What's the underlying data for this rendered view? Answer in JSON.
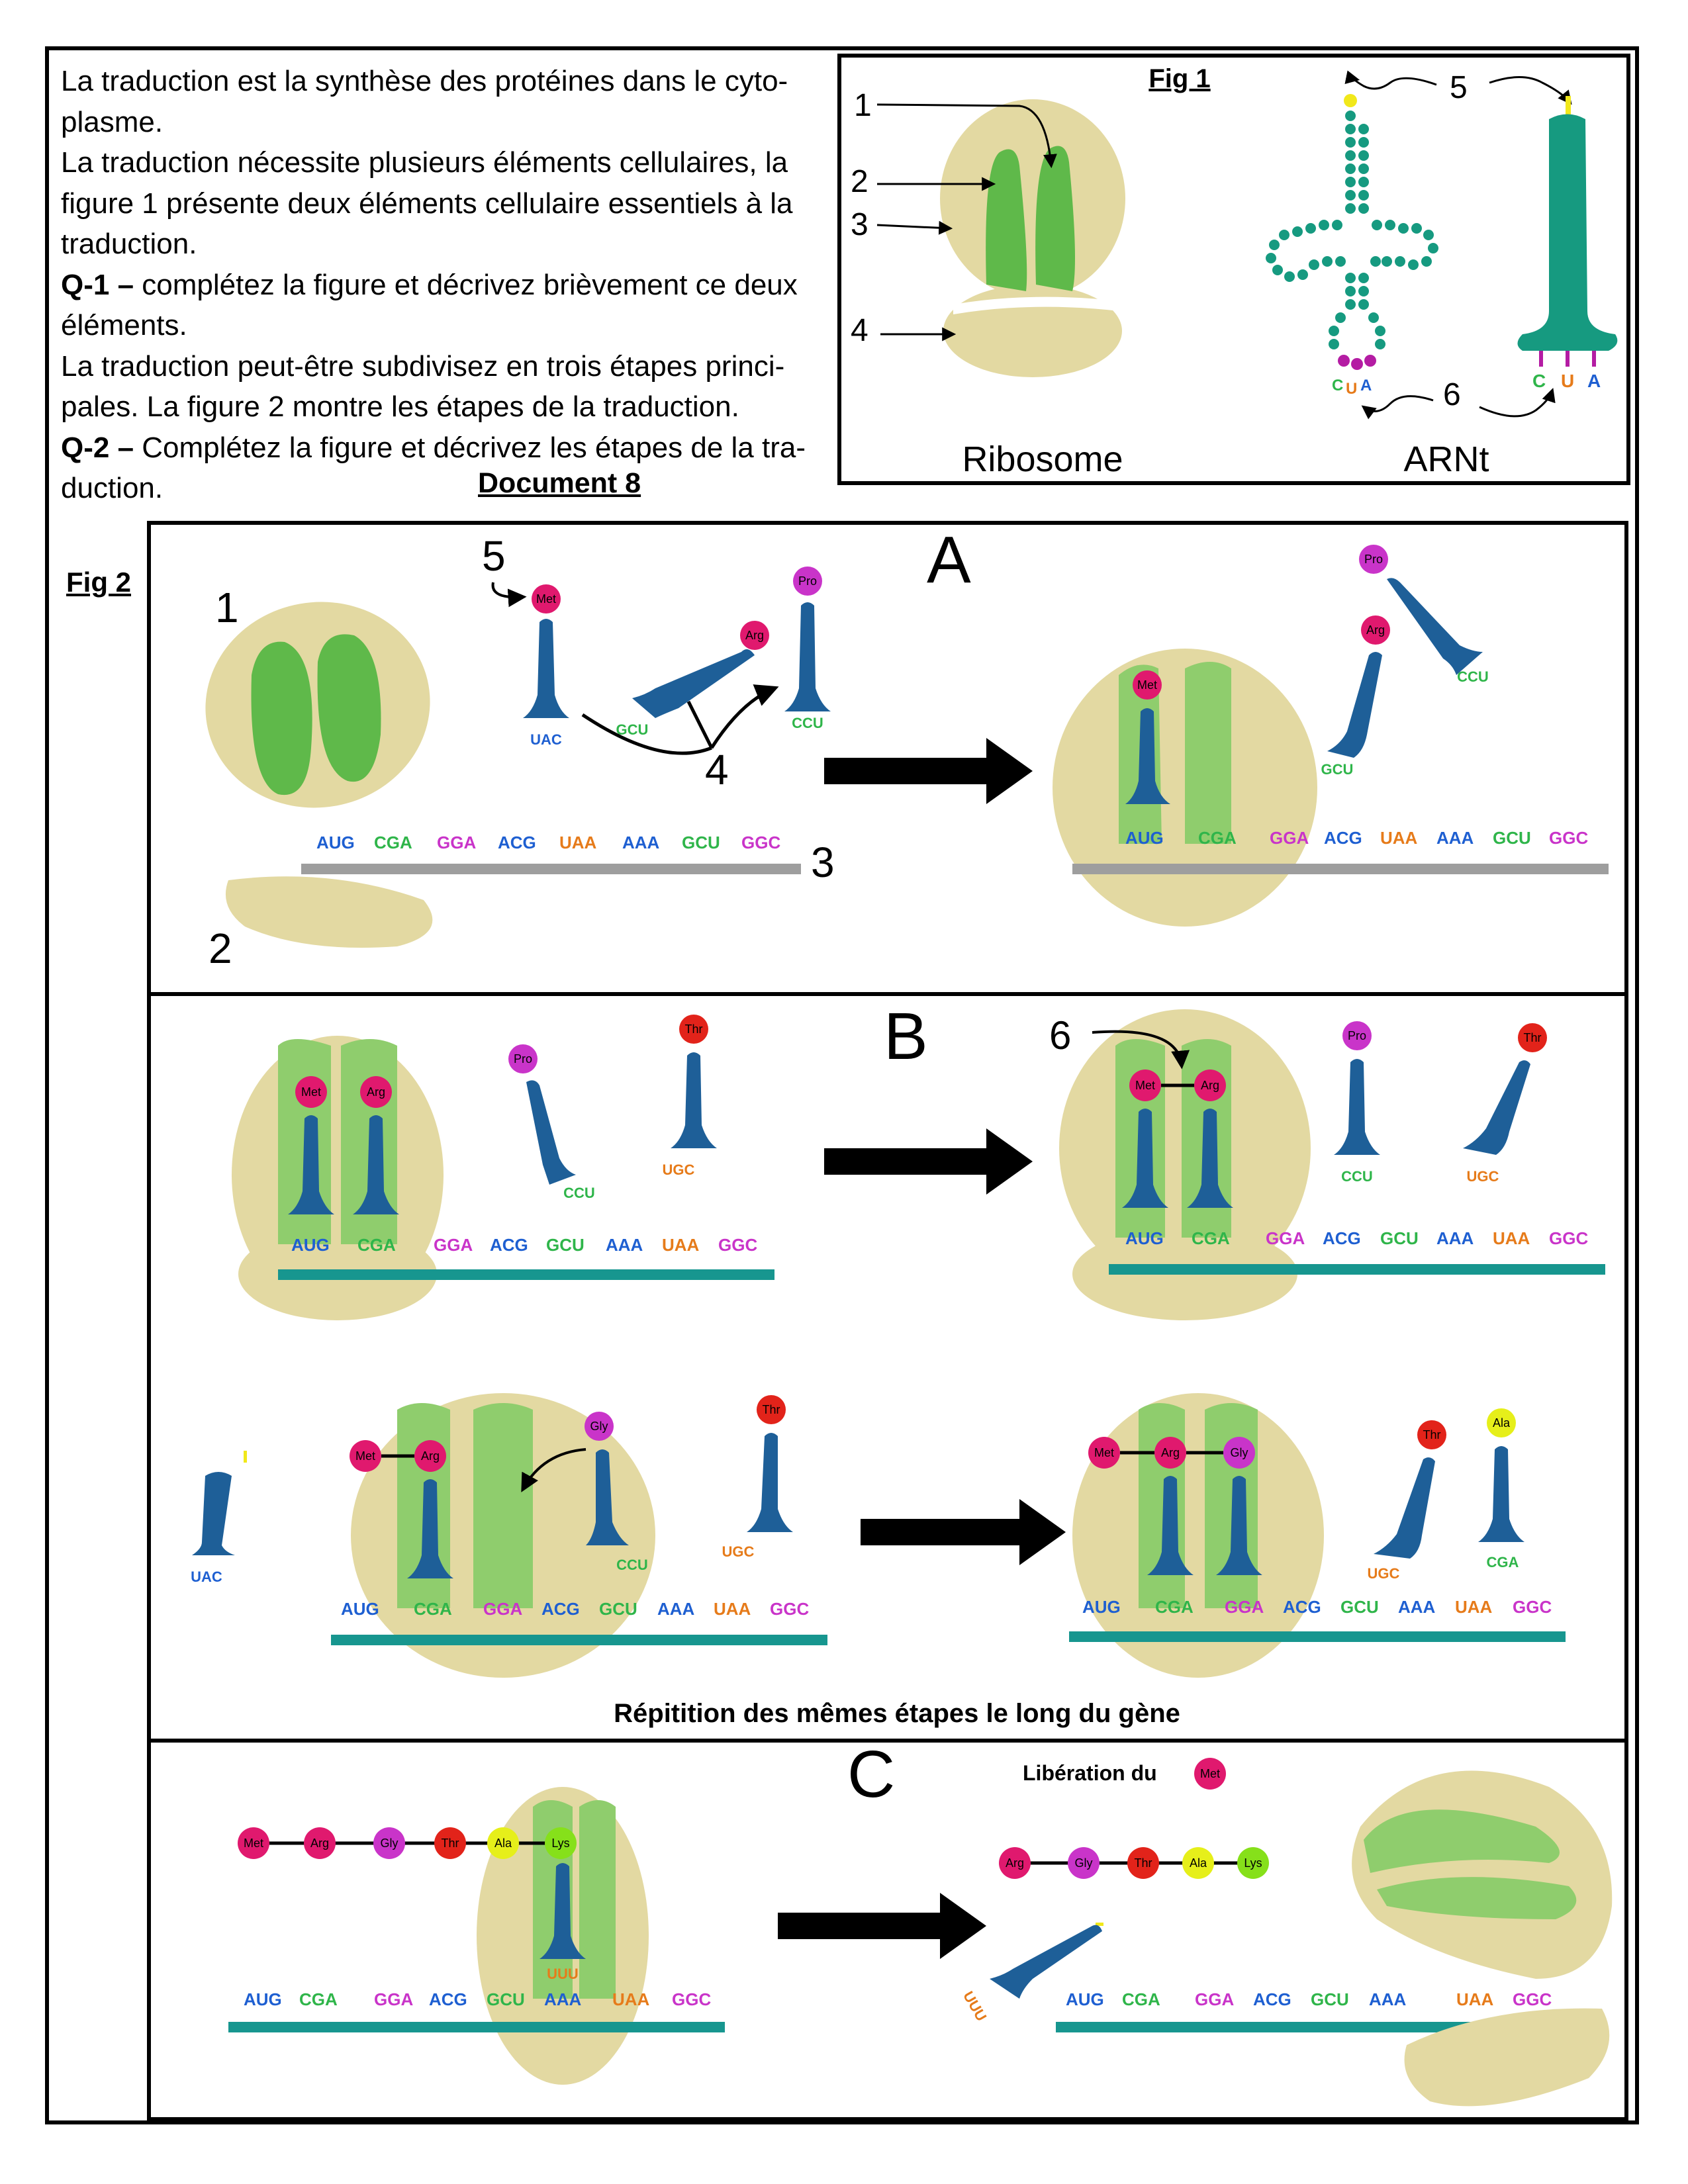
{
  "intro": {
    "paragraphs": [
      {
        "bold": "",
        "text": "La traduction est la synthèse des protéines dans le cyto-plasme."
      },
      {
        "bold": "",
        "text": "La traduction nécessite plusieurs éléments cellulaires, la figure 1 présente deux éléments cellulaire essentiels à la traduction."
      },
      {
        "bold": "Q-1 –",
        "text": " complétez la figure et décrivez brièvement ce deux éléments."
      },
      {
        "bold": "",
        "text": "La traduction peut-être subdivisez en trois étapes princi-pales. La figure 2 montre les étapes de la traduction."
      },
      {
        "bold": "Q-2 –",
        "text": " Complétez la figure et décrivez les étapes de la tra-duction."
      }
    ],
    "document_title": "Document 8"
  },
  "fig1": {
    "title": "Fig 1",
    "ribosome_label": "Ribosome",
    "trna_label": "ARNt",
    "numbers": [
      "1",
      "2",
      "3",
      "4",
      "5",
      "6"
    ],
    "anticodon": [
      "C",
      "U",
      "A"
    ]
  },
  "fig2": {
    "title": "Fig 2",
    "panel_a": {
      "letter": "A",
      "numbers": [
        "1",
        "2",
        "3",
        "4",
        "5"
      ],
      "codons": [
        "AUG",
        "CGA",
        "GGA",
        "ACG",
        "UAA",
        "AAA",
        "GCU",
        "GGC"
      ],
      "amino_acids": [
        "Met",
        "Arg",
        "Pro"
      ],
      "anticodons": [
        "UAC",
        "GCU",
        "CCU"
      ]
    },
    "panel_b": {
      "letter": "B",
      "numbers": [
        "6"
      ],
      "codons": [
        "AUG",
        "CGA",
        "GGA",
        "ACG",
        "GCU",
        "AAA",
        "UAA",
        "GGC"
      ],
      "amino_acids": [
        "Met",
        "Arg",
        "Pro",
        "Thr",
        "Gly",
        "Ala"
      ],
      "anticodons": [
        "UAC",
        "GCU",
        "CCU",
        "UGC",
        "CGA"
      ],
      "repetition_caption": "Répitition des mêmes étapes le long du gène"
    },
    "panel_c": {
      "letter": "C",
      "liberation_text": "Libération du",
      "liberation_aa": "Met",
      "chain_full": [
        "Met",
        "Arg",
        "Gly",
        "Thr",
        "Ala",
        "Lys"
      ],
      "chain_released": [
        "Arg",
        "Gly",
        "Thr",
        "Ala",
        "Lys"
      ],
      "codons": [
        "AUG",
        "CGA",
        "GGA",
        "ACG",
        "GCU",
        "AAA",
        "UAA",
        "GGC"
      ],
      "anticodon": "UUU"
    }
  },
  "colors": {
    "ribosome_tan": "#e3d9a2",
    "ribosome_green": "#5fb94a",
    "trna_teal": "#169a80",
    "trna_blue": "#1e5f98",
    "mrna_gray": "#9e9e9e",
    "mrna_teal": "#17968f",
    "met": "#e0196e",
    "arg": "#e0196e",
    "pro": "#c934c9",
    "gly": "#c934c9",
    "thr": "#e2231a",
    "ala": "#e6ef1a",
    "lys": "#86e01a"
  }
}
